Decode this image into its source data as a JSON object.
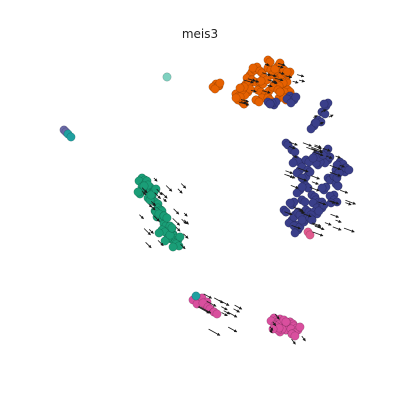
{
  "chart_data": {
    "type": "scatter",
    "title": "meis3",
    "xlabel": "",
    "ylabel": "",
    "axes_visible": false,
    "grid": false,
    "legend": "none",
    "overlay": "velocity-arrows",
    "arrow_color": "#1a1a1a",
    "clusters": [
      {
        "color": "#e66101",
        "points": [
          [
            246,
            84
          ],
          [
            250,
            75
          ],
          [
            255,
            70
          ],
          [
            262,
            73
          ],
          [
            268,
            68
          ],
          [
            275,
            72
          ],
          [
            280,
            78
          ],
          [
            285,
            85
          ],
          [
            290,
            92
          ],
          [
            258,
            90
          ],
          [
            265,
            95
          ],
          [
            272,
            88
          ],
          [
            240,
            98
          ],
          [
            244,
            104
          ],
          [
            236,
            94
          ],
          [
            252,
            80
          ],
          [
            282,
            95
          ],
          [
            288,
            75
          ],
          [
            270,
            62
          ],
          [
            260,
            82
          ],
          [
            276,
            84
          ],
          [
            248,
            92
          ],
          [
            286,
            100
          ],
          [
            294,
            98
          ],
          [
            256,
            100
          ],
          [
            264,
            78
          ],
          [
            278,
            66
          ],
          [
            242,
            90
          ],
          [
            270,
            100
          ],
          [
            284,
            70
          ],
          [
            216,
            84
          ],
          [
            218,
            86
          ],
          [
            238,
            100
          ],
          [
            280,
            92
          ]
        ]
      },
      {
        "color": "#3a3f8a",
        "points": [
          [
            290,
            96
          ],
          [
            294,
            100
          ],
          [
            274,
            105
          ],
          [
            270,
            104
          ],
          [
            322,
            112
          ],
          [
            318,
            120
          ],
          [
            314,
            126
          ],
          [
            326,
            106
          ],
          [
            288,
            145
          ],
          [
            292,
            150
          ],
          [
            296,
            160
          ],
          [
            300,
            170
          ],
          [
            304,
            180
          ],
          [
            308,
            188
          ],
          [
            312,
            195
          ],
          [
            316,
            200
          ],
          [
            320,
            205
          ],
          [
            324,
            190
          ],
          [
            330,
            180
          ],
          [
            336,
            170
          ],
          [
            340,
            162
          ],
          [
            328,
            160
          ],
          [
            318,
            165
          ],
          [
            310,
            172
          ],
          [
            302,
            200
          ],
          [
            298,
            212
          ],
          [
            292,
            220
          ],
          [
            296,
            228
          ],
          [
            300,
            215
          ],
          [
            306,
            210
          ],
          [
            314,
            212
          ],
          [
            322,
            208
          ],
          [
            332,
            198
          ],
          [
            338,
            186
          ],
          [
            334,
            176
          ],
          [
            342,
            170
          ],
          [
            298,
            230
          ],
          [
            292,
            205
          ],
          [
            286,
            212
          ],
          [
            306,
            160
          ],
          [
            316,
            155
          ],
          [
            326,
            152
          ],
          [
            304,
            222
          ],
          [
            312,
            220
          ],
          [
            346,
            168
          ],
          [
            334,
            200
          ],
          [
            300,
            190
          ]
        ]
      },
      {
        "color": "#1a9e77",
        "points": [
          [
            142,
            178
          ],
          [
            145,
            184
          ],
          [
            148,
            190
          ],
          [
            152,
            196
          ],
          [
            155,
            202
          ],
          [
            158,
            208
          ],
          [
            160,
            214
          ],
          [
            163,
            220
          ],
          [
            166,
            226
          ],
          [
            170,
            232
          ],
          [
            174,
            236
          ],
          [
            178,
            240
          ],
          [
            140,
            194
          ],
          [
            150,
            200
          ],
          [
            156,
            212
          ],
          [
            162,
            230
          ],
          [
            168,
            238
          ],
          [
            146,
            188
          ],
          [
            172,
            228
          ],
          [
            164,
            216
          ],
          [
            176,
            244
          ],
          [
            154,
            192
          ]
        ]
      },
      {
        "color": "#d94f9e",
        "points": [
          [
            196,
            297
          ],
          [
            200,
            301
          ],
          [
            205,
            305
          ],
          [
            210,
            309
          ],
          [
            214,
            312
          ],
          [
            274,
            318
          ],
          [
            278,
            322
          ],
          [
            282,
            326
          ],
          [
            286,
            330
          ],
          [
            290,
            322
          ],
          [
            294,
            326
          ],
          [
            298,
            330
          ],
          [
            280,
            332
          ],
          [
            286,
            322
          ],
          [
            292,
            334
          ],
          [
            276,
            326
          ]
        ]
      },
      {
        "color": "#6b6aa8",
        "points": [
          [
            64,
            130
          ],
          [
            66,
            132
          ]
        ]
      },
      {
        "color": "#20a0a0",
        "points": [
          [
            68,
            134
          ],
          [
            71,
            137
          ],
          [
            196,
            296
          ]
        ]
      },
      {
        "color": "#7fd1c0",
        "points": [
          [
            167,
            77
          ]
        ]
      },
      {
        "color": "#e05a8e",
        "points": [
          [
            308,
            232
          ],
          [
            310,
            235
          ]
        ]
      }
    ]
  }
}
